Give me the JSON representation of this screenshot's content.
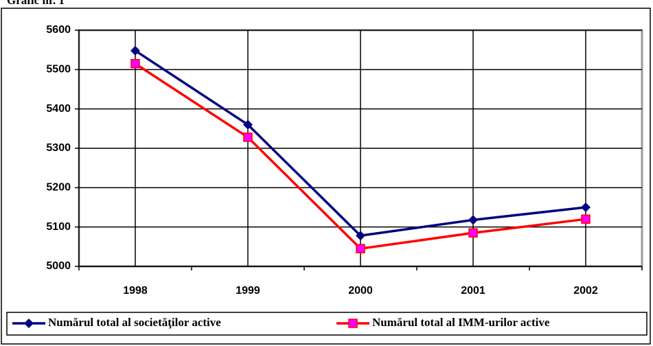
{
  "title": "Grafic nr. 1",
  "chart_data": {
    "type": "line",
    "categories": [
      "1998",
      "1999",
      "2000",
      "2001",
      "2002"
    ],
    "series": [
      {
        "name": "Numărul total al societăţilor active",
        "color": "#000080",
        "marker": "diamond",
        "marker_color": "#000080",
        "values": [
          5548,
          5360,
          5078,
          5118,
          5150
        ]
      },
      {
        "name": "Numărul total al IMM-urilor active",
        "color": "#ff0000",
        "marker": "square",
        "marker_color": "#ff00ff",
        "values": [
          5515,
          5328,
          5045,
          5085,
          5120
        ]
      }
    ],
    "ylim": [
      5000,
      5600
    ],
    "yticks": [
      5000,
      5100,
      5200,
      5300,
      5400,
      5500,
      5600
    ],
    "grid": true,
    "legend": "bottom"
  }
}
